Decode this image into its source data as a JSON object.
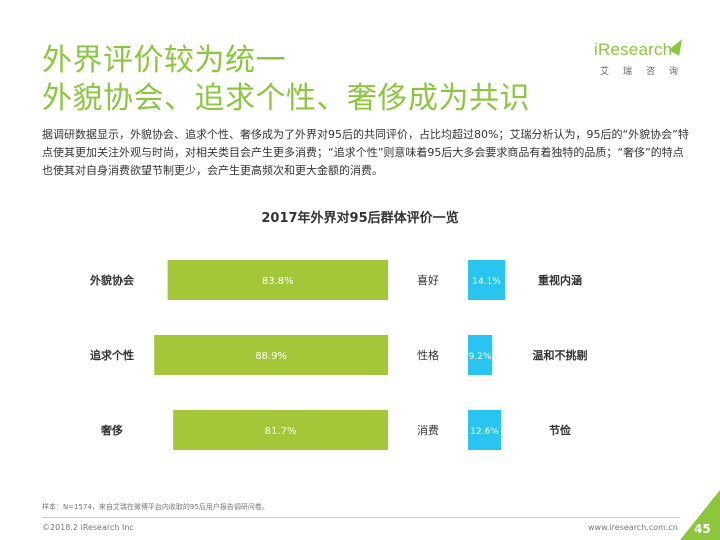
{
  "header": {
    "title_line1": "外界评价较为统一",
    "title_line2": "外貌协会、追求个性、奢侈成为共识",
    "logo_word": "iResearch",
    "logo_sub": "艾瑞咨询"
  },
  "description": "据调研数据显示，外貌协会、追求个性、奢侈成为了外界对95后的共同评价，占比均超过80%；艾瑞分析认为，95后的“外貌协会”特点使其更加关注外观与时尚，对相关类目会产生更多消费；“追求个性”则意味着95后大多会要求商品有着独特的品质；“奢侈”的特点也使其对自身消费欲望节制更少，会产生更高频次和更大金额的消费。",
  "chart_data": {
    "type": "bar",
    "title": "2017年外界对95后群体评价一览",
    "categories": [
      "喜好",
      "性格",
      "消费"
    ],
    "series": [
      {
        "side": "left",
        "labels": [
          "外貌协会",
          "追求个性",
          "奢侈"
        ],
        "values": [
          83.8,
          88.9,
          81.7
        ],
        "value_labels": [
          "83.8%",
          "88.9%",
          "81.7%"
        ],
        "color": "#a4c639"
      },
      {
        "side": "right",
        "labels": [
          "重视内涵",
          "温和不挑剔",
          "节俭"
        ],
        "values": [
          14.1,
          9.2,
          12.6
        ],
        "value_labels": [
          "14.1%",
          "9.2%",
          "12.6%"
        ],
        "color": "#29c5f0"
      }
    ],
    "unit": "%",
    "xlim": [
      0,
      100
    ],
    "grid": false,
    "legend": "none"
  },
  "footnote": "样本：N=1574，来自艾瑞在微博平台内收取的95后用户报告调研问卷。",
  "footer": {
    "copyright": "©2018.2 iResearch Inc",
    "site": "www.iresearch.com.cn",
    "page": "45"
  }
}
